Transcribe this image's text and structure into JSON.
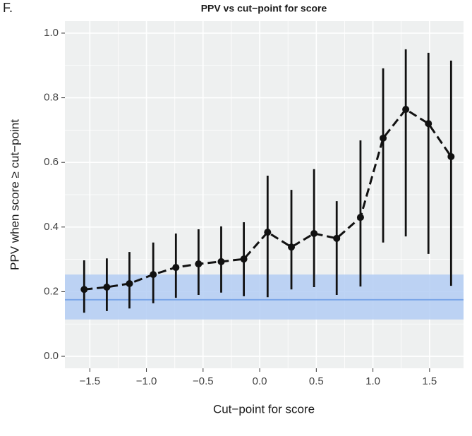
{
  "panel_label": "F.",
  "chart_data": {
    "type": "line",
    "title": "PPV vs cut−point for score",
    "x_label": "Cut−point for score",
    "y_label": "PPV when score ≥ cut−point",
    "x": [
      -1.55,
      -1.35,
      -1.15,
      -0.94,
      -0.74,
      -0.54,
      -0.34,
      -0.14,
      0.07,
      0.28,
      0.48,
      0.68,
      0.89,
      1.09,
      1.29,
      1.49,
      1.69
    ],
    "series": [
      {
        "color": "#111111",
        "values": [
          0.207,
          0.214,
          0.225,
          0.253,
          0.275,
          0.286,
          0.293,
          0.301,
          0.384,
          0.338,
          0.38,
          0.365,
          0.43,
          0.675,
          0.764,
          0.72,
          0.618
        ],
        "lower": [
          0.135,
          0.14,
          0.148,
          0.164,
          0.181,
          0.19,
          0.197,
          0.186,
          0.183,
          0.207,
          0.214,
          0.19,
          0.216,
          0.352,
          0.371,
          0.317,
          0.218
        ],
        "upper": [
          0.297,
          0.303,
          0.323,
          0.352,
          0.38,
          0.393,
          0.402,
          0.415,
          0.559,
          0.515,
          0.579,
          0.48,
          0.668,
          0.891,
          0.95,
          0.939,
          0.915
        ]
      }
    ],
    "reference": {
      "value": 0.175,
      "lower": 0.114,
      "upper": 0.253,
      "color": "#7ba6e8",
      "band_color": "#b3cdf3"
    },
    "xlim": [
      -1.72,
      1.8
    ],
    "ylim": [
      -0.037,
      1.037
    ],
    "xticks": [
      {
        "value": -1.5,
        "label": "−1.5"
      },
      {
        "value": -1.0,
        "label": "−1.0"
      },
      {
        "value": -0.5,
        "label": "−0.5"
      },
      {
        "value": 0,
        "label": "0.0"
      },
      {
        "value": 0.5,
        "label": "0.5"
      },
      {
        "value": 1.0,
        "label": "1.0"
      },
      {
        "value": 1.5,
        "label": "1.5"
      }
    ],
    "yticks": [
      {
        "value": 0,
        "label": "0.0"
      },
      {
        "value": 0.2,
        "label": "0.2"
      },
      {
        "value": 0.4,
        "label": "0.4"
      },
      {
        "value": 0.6,
        "label": "0.6"
      },
      {
        "value": 0.8,
        "label": "0.8"
      },
      {
        "value": 1.0,
        "label": "1.0"
      }
    ],
    "grid": true
  }
}
